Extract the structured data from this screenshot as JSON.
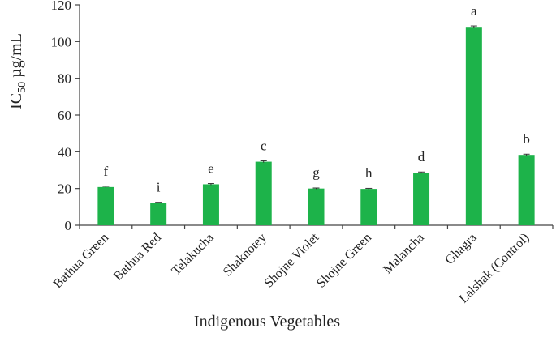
{
  "chart_data": {
    "type": "bar",
    "categories": [
      "Bathua Green",
      "Bathua Red",
      "Telakucha",
      "Shaknotey",
      "Shojne Violet",
      "Shojne Green",
      "Malancha",
      "Ghagra",
      "Lalshak (Control)"
    ],
    "values": [
      20.8,
      12.2,
      22.3,
      34.6,
      20.0,
      19.8,
      28.6,
      108.0,
      38.3
    ],
    "errors": [
      0.4,
      0.3,
      0.4,
      0.5,
      0.3,
      0.3,
      0.4,
      0.5,
      0.4
    ],
    "significance_letters": [
      "f",
      "i",
      "e",
      "c",
      "g",
      "h",
      "d",
      "a",
      "b"
    ],
    "xlabel": "Indigenous Vegetables",
    "ylabel": {
      "main": "IC",
      "sub": "50",
      "unit": " µg/mL"
    },
    "ylim": [
      0,
      120
    ],
    "yticks": [
      "0",
      "20",
      "40",
      "60",
      "80",
      "100",
      "120"
    ],
    "bar_color": "#1db34a",
    "grid": false,
    "legend": "none"
  }
}
